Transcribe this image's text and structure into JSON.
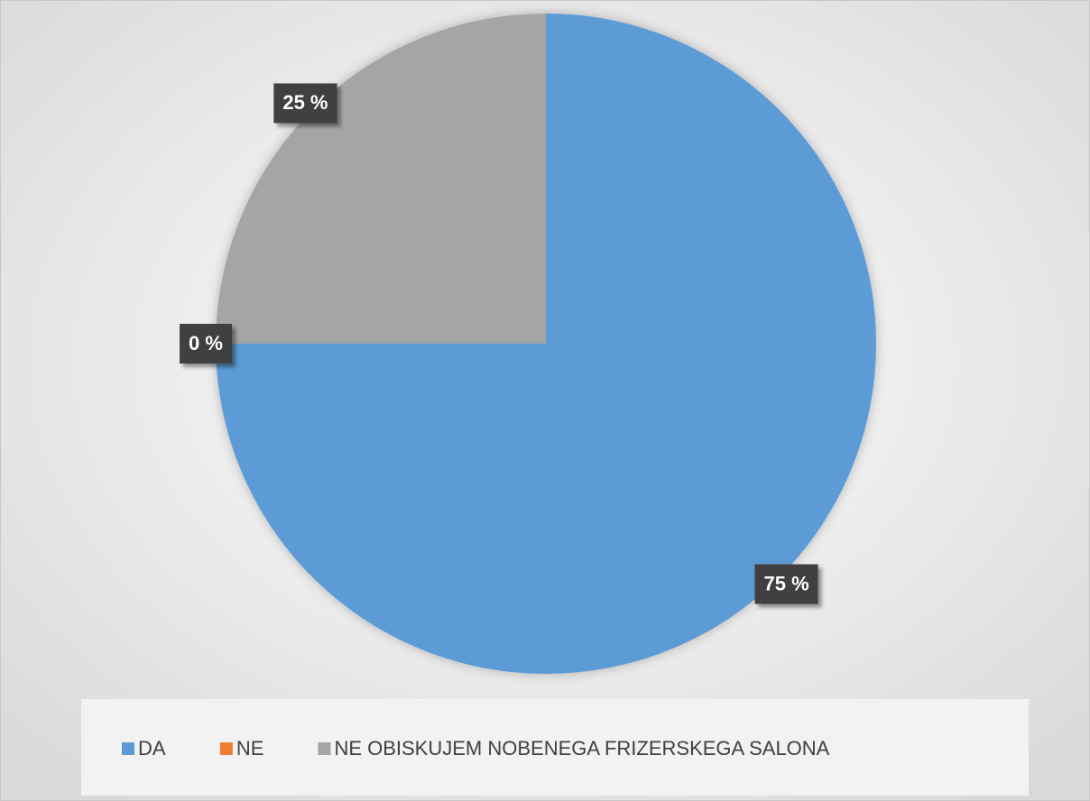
{
  "chart_data": {
    "type": "pie",
    "categories": [
      "DA",
      "NE",
      "NE OBISKUJEM NOBENEGA FRIZERSKEGA SALONA"
    ],
    "values": [
      75,
      0,
      25
    ],
    "value_labels": [
      "75 %",
      "0 %",
      "25 %"
    ],
    "colors": [
      "#5b9bd5",
      "#ed7d31",
      "#a5a5a5"
    ],
    "legend": "bottom"
  }
}
